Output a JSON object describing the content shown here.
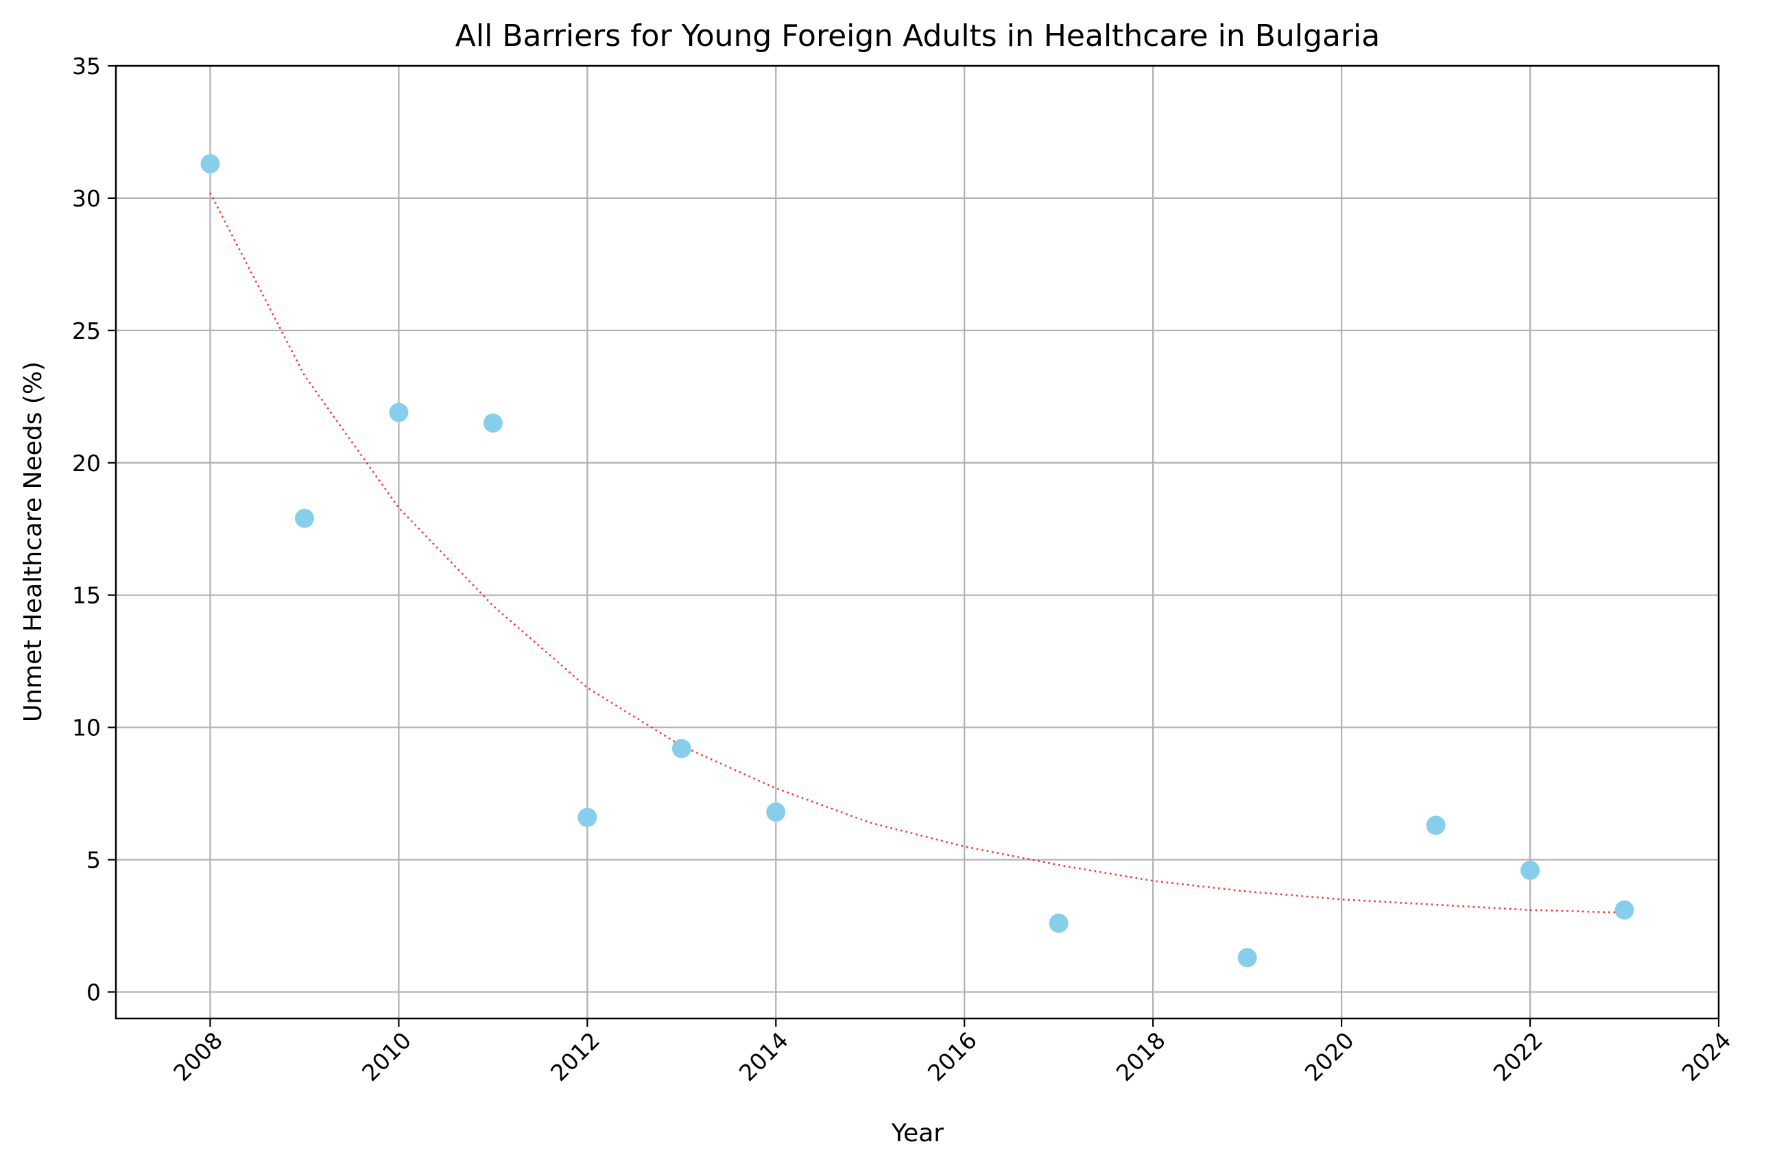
{
  "chart_data": {
    "type": "scatter",
    "title": "All Barriers for Young Foreign Adults in Healthcare in Bulgaria",
    "xlabel": "Year",
    "ylabel": "Unmet Healthcare Needs (%)",
    "xlim": [
      2007,
      2024
    ],
    "ylim": [
      -1,
      35
    ],
    "xticks": [
      2008,
      2010,
      2012,
      2014,
      2016,
      2018,
      2020,
      2022,
      2024
    ],
    "yticks": [
      0,
      5,
      10,
      15,
      20,
      25,
      30,
      35
    ],
    "grid": true,
    "series": [
      {
        "x": [
          2008,
          2009,
          2010,
          2011,
          2012,
          2013,
          2014,
          2017,
          2019,
          2021,
          2022,
          2023
        ],
        "y": [
          31.3,
          17.9,
          21.9,
          21.5,
          6.6,
          9.2,
          6.8,
          2.6,
          1.3,
          6.3,
          4.6,
          3.1
        ],
        "color": "#87ceeb"
      }
    ],
    "trendline": {
      "style": "dotted",
      "color": "#ff0000",
      "x": [
        2008,
        2009,
        2010,
        2011,
        2012,
        2013,
        2014,
        2015,
        2016,
        2017,
        2018,
        2019,
        2020,
        2021,
        2022,
        2023
      ],
      "y": [
        30.2,
        23.3,
        18.3,
        14.6,
        11.5,
        9.3,
        7.7,
        6.4,
        5.5,
        4.8,
        4.2,
        3.8,
        3.5,
        3.3,
        3.1,
        3.0
      ]
    }
  }
}
